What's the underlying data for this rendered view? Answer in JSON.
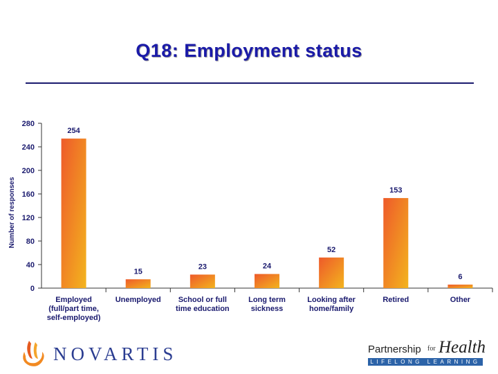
{
  "slide": {
    "title": "Q18: Employment status"
  },
  "logos": {
    "novartis": "NOVARTIS",
    "partnership": "Partnership",
    "for": "for",
    "health": "Health",
    "lifelong": "LIFELONG LEARNING"
  },
  "colors": {
    "title": "#1a1aa8",
    "bar_top": "#f3b41e",
    "bar_bottom": "#ee5a2a",
    "text": "#1a1a6e"
  },
  "chart_data": {
    "type": "bar",
    "ylabel": "Number of responses",
    "xlabel": "",
    "ylim": [
      0,
      280
    ],
    "yticks": [
      0,
      40,
      80,
      120,
      160,
      200,
      240,
      280
    ],
    "categories": [
      [
        "Employed",
        "(full/part time,",
        "self-employed)"
      ],
      [
        "Unemployed"
      ],
      [
        "School or full",
        "time education"
      ],
      [
        "Long term",
        "sickness"
      ],
      [
        "Looking after",
        "home/family"
      ],
      [
        "Retired"
      ],
      [
        "Other"
      ]
    ],
    "values": [
      254,
      15,
      23,
      24,
      52,
      153,
      6
    ],
    "data_labels": [
      "254",
      "15",
      "23",
      "24",
      "52",
      "153",
      "6"
    ],
    "grid": false,
    "legend": "none"
  }
}
